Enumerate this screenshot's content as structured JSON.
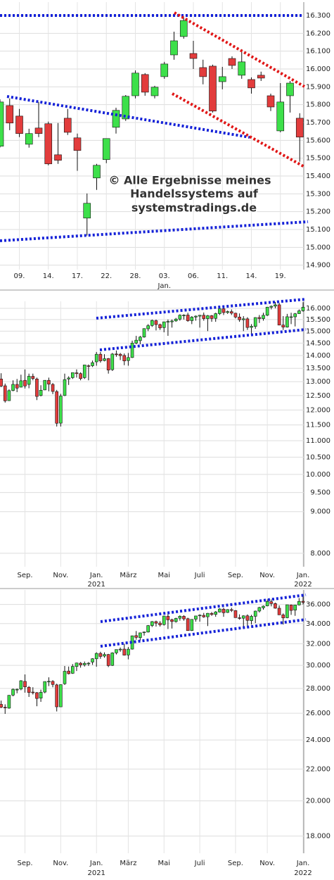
{
  "chart_data": [
    {
      "type": "candlestick",
      "log_scale": false,
      "grid": true,
      "up_color": "#3de04a",
      "down_color": "#e23c3c",
      "categories": [
        null,
        null,
        "09.",
        null,
        null,
        "14.",
        null,
        null,
        "17.",
        null,
        null,
        "22.",
        null,
        null,
        "28.",
        null,
        null,
        "03.",
        null,
        null,
        "06.",
        null,
        null,
        "11.",
        null,
        null,
        "14.",
        null,
        null,
        "19.",
        null,
        null
      ],
      "x_sublabels": [
        {
          "value": 17,
          "label": "Jan."
        }
      ],
      "open": [
        15567,
        15795,
        15736,
        15578,
        15669,
        15693,
        15519,
        15724,
        15614,
        15164,
        15389,
        15492,
        15673,
        15720,
        15850,
        15969,
        15850,
        15957,
        16079,
        16182,
        16087,
        16008,
        16016,
        15929,
        16059,
        15965,
        15941,
        15965,
        15850,
        15653,
        15850,
        15724
      ],
      "high": [
        15830,
        15835,
        15776,
        15665,
        15815,
        15705,
        15697,
        15776,
        15638,
        15302,
        15468,
        15610,
        15783,
        15854,
        15992,
        15977,
        15906,
        16040,
        16209,
        16288,
        16158,
        16052,
        16024,
        16012,
        16071,
        16111,
        15953,
        15985,
        15862,
        15921,
        15933,
        15752
      ],
      "low": [
        15560,
        15657,
        15618,
        15559,
        15618,
        15460,
        15468,
        15630,
        15429,
        15066,
        15322,
        15472,
        15638,
        15709,
        15835,
        15850,
        15835,
        15945,
        16052,
        16170,
        16000,
        15914,
        15756,
        15886,
        16000,
        15945,
        15862,
        15933,
        15764,
        15645,
        15756,
        15480
      ],
      "close": [
        15815,
        15697,
        15638,
        15638,
        15638,
        15468,
        15488,
        15645,
        15543,
        15247,
        15460,
        15610,
        15768,
        15847,
        15977,
        15870,
        15898,
        16028,
        16158,
        16272,
        16059,
        15957,
        15764,
        15957,
        16020,
        16040,
        15894,
        15949,
        15787,
        15815,
        15921,
        15618
      ],
      "ylim": [
        14875,
        16375
      ],
      "yticks": [
        {
          "value": 14900,
          "label": "14.900"
        },
        {
          "value": 15000,
          "label": "15.000"
        },
        {
          "value": 15100,
          "label": "15.100"
        },
        {
          "value": 15200,
          "label": "15.200"
        },
        {
          "value": 15300,
          "label": "15.300"
        },
        {
          "value": 15400,
          "label": "15.400"
        },
        {
          "value": 15500,
          "label": "15.500"
        },
        {
          "value": 15600,
          "label": "15.600"
        },
        {
          "value": 15700,
          "label": "15.700"
        },
        {
          "value": 15800,
          "label": "15.800"
        },
        {
          "value": 15900,
          "label": "15.900"
        },
        {
          "value": 16000,
          "label": "16.000"
        },
        {
          "value": 16100,
          "label": "16.100"
        },
        {
          "value": 16200,
          "label": "16.200"
        },
        {
          "value": 16300,
          "label": "16.300"
        }
      ],
      "annotation": [
        "© Alle Ergebnisse meines",
        "Handelssystems auf",
        "systemstradings.de"
      ]
    },
    {
      "type": "candlestick",
      "log_scale": true,
      "grid": true,
      "up_color": "#3de04a",
      "down_color": "#e23c3c",
      "categories": [
        null,
        null,
        null,
        null,
        null,
        null,
        "Sep.",
        null,
        null,
        null,
        null,
        null,
        null,
        null,
        null,
        "Nov.",
        null,
        null,
        null,
        null,
        null,
        null,
        null,
        null,
        "Jan.",
        null,
        null,
        null,
        null,
        null,
        null,
        null,
        "März",
        null,
        null,
        null,
        null,
        null,
        null,
        null,
        null,
        "Mai",
        null,
        null,
        null,
        null,
        null,
        null,
        null,
        null,
        "Juli",
        null,
        null,
        null,
        null,
        null,
        null,
        null,
        null,
        "Sep.",
        null,
        null,
        null,
        null,
        null,
        null,
        null,
        "Nov.",
        null,
        null,
        null,
        null,
        null,
        null,
        null,
        null,
        "Jan."
      ],
      "x_sublabels": [
        {
          "value": 24,
          "label": "2021"
        },
        {
          "value": 76,
          "label": "2022"
        }
      ],
      "open": [
        13100,
        12850,
        12320,
        12680,
        12900,
        12800,
        13050,
        12900,
        13200,
        13100,
        12500,
        12700,
        13050,
        12900,
        12640,
        11560,
        12500,
        13100,
        13150,
        13330,
        13300,
        13150,
        13600,
        13600,
        13750,
        14050,
        13800,
        13880,
        13450,
        14060,
        14050,
        14000,
        13800,
        13920,
        14500,
        14600,
        14750,
        15100,
        15240,
        15450,
        15280,
        15150,
        15400,
        15400,
        15440,
        15520,
        15690,
        15700,
        15450,
        15610,
        15650,
        15690,
        15540,
        15670,
        15550,
        15760,
        15980,
        15810,
        15850,
        15780,
        15610,
        15490,
        15530,
        15160,
        15200,
        15590,
        15540,
        15690,
        16050,
        16100,
        16160,
        15260,
        15170,
        15620,
        15620,
        15760,
        15890
      ],
      "high": [
        13314,
        12930,
        12720,
        13050,
        13100,
        13260,
        13460,
        13300,
        13300,
        13150,
        12870,
        13050,
        13150,
        12950,
        12700,
        12560,
        13300,
        13200,
        13340,
        13460,
        13350,
        13640,
        13650,
        13800,
        14140,
        14140,
        14050,
        13900,
        14100,
        14200,
        14100,
        14080,
        14100,
        14600,
        14800,
        14800,
        15120,
        15300,
        15500,
        15500,
        15320,
        15400,
        15500,
        15500,
        15570,
        15730,
        15730,
        15800,
        15650,
        15680,
        15700,
        15810,
        15700,
        15700,
        15800,
        15980,
        16030,
        15900,
        15950,
        15800,
        15770,
        15650,
        15600,
        15300,
        15600,
        15700,
        15800,
        16060,
        16130,
        16290,
        16250,
        15650,
        15750,
        15800,
        15790,
        15950,
        16280
      ],
      "low": [
        12800,
        12253,
        12310,
        12650,
        12620,
        12790,
        12750,
        12760,
        13050,
        12340,
        12470,
        12690,
        12650,
        12550,
        11450,
        11450,
        12480,
        12880,
        13100,
        13150,
        13050,
        13100,
        13050,
        13550,
        13600,
        13720,
        13770,
        13300,
        13400,
        13950,
        13820,
        13620,
        13600,
        13900,
        14450,
        14450,
        14720,
        15000,
        15180,
        15030,
        15050,
        14950,
        14800,
        15150,
        15400,
        15450,
        15500,
        15400,
        15300,
        15450,
        15150,
        15450,
        15000,
        15400,
        15400,
        15700,
        15700,
        15750,
        15700,
        15550,
        15400,
        15000,
        15050,
        14820,
        15100,
        15350,
        15450,
        15650,
        15950,
        16000,
        15250,
        15050,
        15150,
        15300,
        15200,
        15750,
        15850
      ],
      "close": [
        12838,
        12313,
        12674,
        12901,
        12765,
        13033,
        12842,
        13202,
        13116,
        12469,
        12689,
        13051,
        12909,
        12646,
        11556,
        12480,
        13077,
        13137,
        13336,
        13298,
        13114,
        13630,
        13587,
        13719,
        14050,
        13788,
        13873,
        13433,
        14057,
        14050,
        13993,
        13786,
        13920,
        14502,
        14621,
        14749,
        15107,
        15234,
        15459,
        15280,
        15136,
        15400,
        15416,
        15437,
        15520,
        15693,
        15693,
        15448,
        15607,
        15650,
        15688,
        15540,
        15669,
        15544,
        15761,
        15977,
        15808,
        15852,
        15781,
        15609,
        15490,
        15531,
        15156,
        15206,
        15587,
        15543,
        15688,
        16054,
        16094,
        16160,
        15257,
        15170,
        15623,
        15621,
        15756,
        15885,
        16052
      ],
      "ylim": [
        7700,
        16320
      ],
      "yticks": [
        {
          "value": 8000,
          "label": "8.000"
        },
        {
          "value": 9000,
          "label": "9.000"
        },
        {
          "value": 9500,
          "label": "9.500"
        },
        {
          "value": 10000,
          "label": "10.000"
        },
        {
          "value": 10500,
          "label": "10.500"
        },
        {
          "value": 11000,
          "label": "11.000"
        },
        {
          "value": 11500,
          "label": "11.500"
        },
        {
          "value": 12000,
          "label": "12.000"
        },
        {
          "value": 12500,
          "label": "12.500"
        },
        {
          "value": 13000,
          "label": "13.000"
        },
        {
          "value": 13500,
          "label": "13.500"
        },
        {
          "value": 14000,
          "label": "14.000"
        },
        {
          "value": 14500,
          "label": "14.500"
        },
        {
          "value": 15000,
          "label": "15.000"
        },
        {
          "value": 15500,
          "label": "15.500"
        },
        {
          "value": 16000,
          "label": "16.000"
        }
      ]
    },
    {
      "type": "candlestick",
      "log_scale": true,
      "grid": true,
      "up_color": "#3de04a",
      "down_color": "#e23c3c",
      "categories": [
        null,
        null,
        null,
        null,
        null,
        null,
        "Sep.",
        null,
        null,
        null,
        null,
        null,
        null,
        null,
        null,
        "Nov.",
        null,
        null,
        null,
        null,
        null,
        null,
        null,
        null,
        "Jan.",
        null,
        null,
        null,
        null,
        null,
        null,
        null,
        "März",
        null,
        null,
        null,
        null,
        null,
        null,
        null,
        null,
        "Mai",
        null,
        null,
        null,
        null,
        null,
        null,
        null,
        null,
        "Juli",
        null,
        null,
        null,
        null,
        null,
        null,
        null,
        null,
        "Sep.",
        null,
        null,
        null,
        null,
        null,
        null,
        null,
        "Nov.",
        null,
        null,
        null,
        null,
        null,
        null,
        null,
        null,
        "Jan."
      ],
      "x_sublabels": [
        {
          "value": 24,
          "label": "2021"
        },
        {
          "value": 76,
          "label": "2022"
        }
      ],
      "open": [
        26700,
        26470,
        26400,
        27450,
        27900,
        27950,
        28600,
        28100,
        27700,
        27650,
        27200,
        27700,
        28600,
        28600,
        28300,
        26500,
        28400,
        29500,
        29300,
        29900,
        30200,
        30050,
        30200,
        30300,
        30600,
        31100,
        30850,
        31000,
        30000,
        31150,
        31450,
        31500,
        30950,
        31500,
        32800,
        32600,
        33100,
        33150,
        33800,
        34200,
        34050,
        33900,
        34750,
        34400,
        34200,
        34550,
        34750,
        34500,
        33300,
        34450,
        34800,
        34850,
        34700,
        35050,
        34950,
        35200,
        35500,
        35150,
        35450,
        35350,
        34600,
        34550,
        34800,
        34300,
        34750,
        35300,
        35650,
        35850,
        36300,
        36100,
        35600,
        34900,
        34600,
        35950,
        35400,
        35950,
        36350
      ],
      "high": [
        27000,
        26700,
        27450,
        28000,
        28000,
        28700,
        29200,
        28200,
        28100,
        27700,
        27900,
        28450,
        28950,
        28700,
        28400,
        28350,
        29950,
        29900,
        30120,
        30250,
        30300,
        30350,
        30300,
        30650,
        31200,
        31250,
        31200,
        31050,
        31200,
        31460,
        31650,
        32000,
        31700,
        32800,
        33250,
        33100,
        33200,
        33850,
        34260,
        34300,
        34250,
        34800,
        35100,
        34500,
        34600,
        34850,
        34850,
        34600,
        34450,
        34800,
        34950,
        35100,
        35100,
        35200,
        35300,
        35600,
        35650,
        35500,
        35650,
        35400,
        34950,
        34850,
        34950,
        34900,
        35350,
        35750,
        35900,
        36550,
        36550,
        36200,
        35900,
        35050,
        35900,
        36000,
        35950,
        36700,
        36950
      ],
      "low": [
        26400,
        25950,
        26350,
        27350,
        27600,
        27850,
        27650,
        27300,
        27500,
        26550,
        26900,
        27600,
        28200,
        28100,
        26140,
        26500,
        28300,
        29200,
        29250,
        29500,
        29800,
        29900,
        29950,
        30050,
        29880,
        30600,
        30700,
        29850,
        29950,
        31000,
        31250,
        30900,
        30550,
        31450,
        32400,
        32300,
        32800,
        33100,
        33650,
        33700,
        33700,
        33800,
        33450,
        33500,
        34100,
        34300,
        34300,
        33300,
        33250,
        34200,
        34200,
        34600,
        33750,
        34800,
        34700,
        35150,
        34700,
        35100,
        35200,
        34600,
        34400,
        33600,
        33600,
        33900,
        34050,
        35150,
        35450,
        35800,
        35800,
        35550,
        34950,
        33900,
        34550,
        34900,
        34800,
        35900,
        36000
      ],
      "close": [
        26470,
        26428,
        27433,
        27931,
        27930,
        28654,
        28133,
        27666,
        27657,
        27174,
        27683,
        28587,
        28606,
        28336,
        26502,
        28323,
        29480,
        29263,
        29910,
        30218,
        30046,
        30179,
        30200,
        30606,
        31098,
        30814,
        30997,
        29983,
        31148,
        31458,
        31494,
        30932,
        31496,
        32779,
        32628,
        33072,
        33153,
        33800,
        34200,
        34043,
        33875,
        34778,
        34382,
        34208,
        34529,
        34756,
        34480,
        33290,
        34433,
        34786,
        34870,
        34687,
        35061,
        34935,
        35209,
        35515,
        35120,
        35455,
        35369,
        34608,
        34584,
        34798,
        34326,
        34746,
        35295,
        35677,
        35820,
        36327,
        36100,
        35602,
        34899,
        34580,
        35971,
        35365,
        35950,
        36338,
        36231
      ],
      "ylim": [
        17100,
        37600
      ],
      "yticks": [
        {
          "value": 18000,
          "label": "18.000"
        },
        {
          "value": 20000,
          "label": "20.000"
        },
        {
          "value": 22000,
          "label": "22.000"
        },
        {
          "value": 24000,
          "label": "24.000"
        },
        {
          "value": 26000,
          "label": "26.000"
        },
        {
          "value": 28000,
          "label": "28.000"
        },
        {
          "value": 30000,
          "label": "30.000"
        },
        {
          "value": 32000,
          "label": "32.000"
        },
        {
          "value": 34000,
          "label": "34.000"
        },
        {
          "value": 36000,
          "label": "36.000"
        }
      ]
    }
  ]
}
